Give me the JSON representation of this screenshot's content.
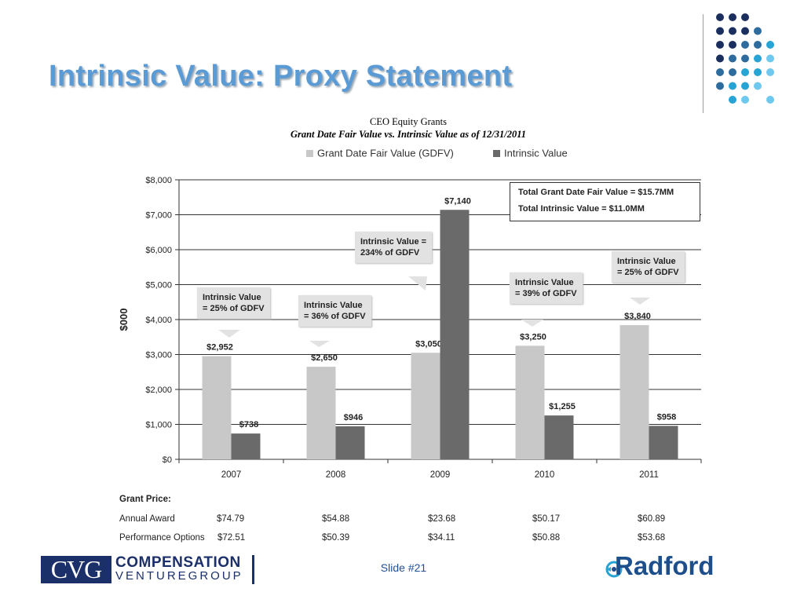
{
  "slide": {
    "title": "Intrinsic Value:  Proxy Statement",
    "slide_number": "Slide #21",
    "logo_left": {
      "box": "CVG",
      "line1": "COMPENSATION",
      "line2": "VENTUREGROUP"
    },
    "logo_right": "Radford"
  },
  "colors": {
    "title": "#5b9bd5",
    "gdfv_bar": "#c8c8c8",
    "intrinsic_bar": "#6a6a6a",
    "dots": [
      "#1b2f5e",
      "#2f6c9e",
      "#27a3d4",
      "#6fc8ee"
    ]
  },
  "chart_data": {
    "type": "bar",
    "title": "CEO Equity Grants",
    "subtitle": "Grant Date Fair Value vs. Intrinsic Value as of 12/31/2011",
    "categories": [
      "2007",
      "2008",
      "2009",
      "2010",
      "2011"
    ],
    "series": [
      {
        "name": "Grant Date Fair Value (GDFV)",
        "values": [
          2952,
          2650,
          3050,
          3250,
          3840
        ],
        "labels": [
          "$2,952",
          "$2,650",
          "$3,050",
          "$3,250",
          "$3,840"
        ]
      },
      {
        "name": "Intrinsic Value",
        "values": [
          738,
          946,
          7140,
          1255,
          958
        ],
        "labels": [
          "$738",
          "$946",
          "$7,140",
          "$1,255",
          "$958"
        ]
      }
    ],
    "ylabel": "$000",
    "ylim": [
      0,
      8000
    ],
    "yticks": [
      0,
      1000,
      2000,
      3000,
      4000,
      5000,
      6000,
      7000,
      8000
    ],
    "ytick_labels": [
      "$0",
      "$1,000",
      "$2,000",
      "$3,000",
      "$4,000",
      "$5,000",
      "$6,000",
      "$7,000",
      "$8,000"
    ],
    "grid": true,
    "legend_placement": "top",
    "annotations": [
      {
        "year": "2007",
        "line1": "Intrinsic Value",
        "line2": "= 25% of GDFV"
      },
      {
        "year": "2008",
        "line1": "Intrinsic Value",
        "line2": "= 36% of GDFV"
      },
      {
        "year": "2009",
        "line1": "Intrinsic Value =",
        "line2": "234% of GDFV"
      },
      {
        "year": "2010",
        "line1": "Intrinsic Value",
        "line2": "= 39% of GDFV"
      },
      {
        "year": "2011",
        "line1": "Intrinsic Value",
        "line2": "= 25% of GDFV"
      }
    ],
    "totals": {
      "gdfv": "Total Grant Date Fair Value = $15.7MM",
      "intrinsic": "Total Intrinsic Value = $11.0MM"
    }
  },
  "grant_price": {
    "heading": "Grant Price:",
    "rows": [
      {
        "label": "Annual Award",
        "values": [
          "$74.79",
          "$54.88",
          "$23.68",
          "$50.17",
          "$60.89"
        ]
      },
      {
        "label": "Performance Options",
        "values": [
          "$72.51",
          "$50.39",
          "$34.11",
          "$50.88",
          "$53.68"
        ]
      }
    ]
  }
}
